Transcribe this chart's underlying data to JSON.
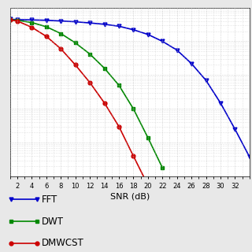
{
  "title": "",
  "xlabel": "SNR (dB)",
  "ylabel": "",
  "xlim": [
    1,
    34
  ],
  "ylim_log": [
    -5,
    0
  ],
  "snr_fft": [
    1,
    2,
    4,
    6,
    8,
    10,
    12,
    14,
    16,
    18,
    20,
    22,
    24,
    26,
    28,
    30,
    32,
    34
  ],
  "ber_fft": [
    0.45,
    0.44,
    0.43,
    0.42,
    0.4,
    0.38,
    0.35,
    0.32,
    0.28,
    0.22,
    0.16,
    0.1,
    0.055,
    0.022,
    0.007,
    0.0015,
    0.00025,
    3.8e-05
  ],
  "snr_dwt": [
    1,
    2,
    4,
    6,
    8,
    10,
    12,
    14,
    16,
    18,
    20,
    22
  ],
  "ber_dwt": [
    0.44,
    0.42,
    0.36,
    0.27,
    0.17,
    0.09,
    0.042,
    0.016,
    0.005,
    0.001,
    0.00014,
    1.8e-05
  ],
  "snr_dmwcst": [
    1,
    2,
    4,
    6,
    8,
    10,
    12,
    14,
    16,
    18,
    20
  ],
  "ber_dmwcst": [
    0.43,
    0.4,
    0.26,
    0.14,
    0.06,
    0.02,
    0.006,
    0.0015,
    0.0003,
    4e-05,
    5.5e-06
  ],
  "color_fft": "#0000cc",
  "color_dwt": "#008800",
  "color_dmwcst": "#cc0000",
  "legend_labels": [
    "FFT",
    "DWT",
    "DMWCST"
  ],
  "marker_fft": "v",
  "marker_dwt": "s",
  "marker_dmwcst": "o",
  "grid_color": "#bbbbbb",
  "background_color": "#ffffff",
  "fig_background": "#e8e8e8"
}
